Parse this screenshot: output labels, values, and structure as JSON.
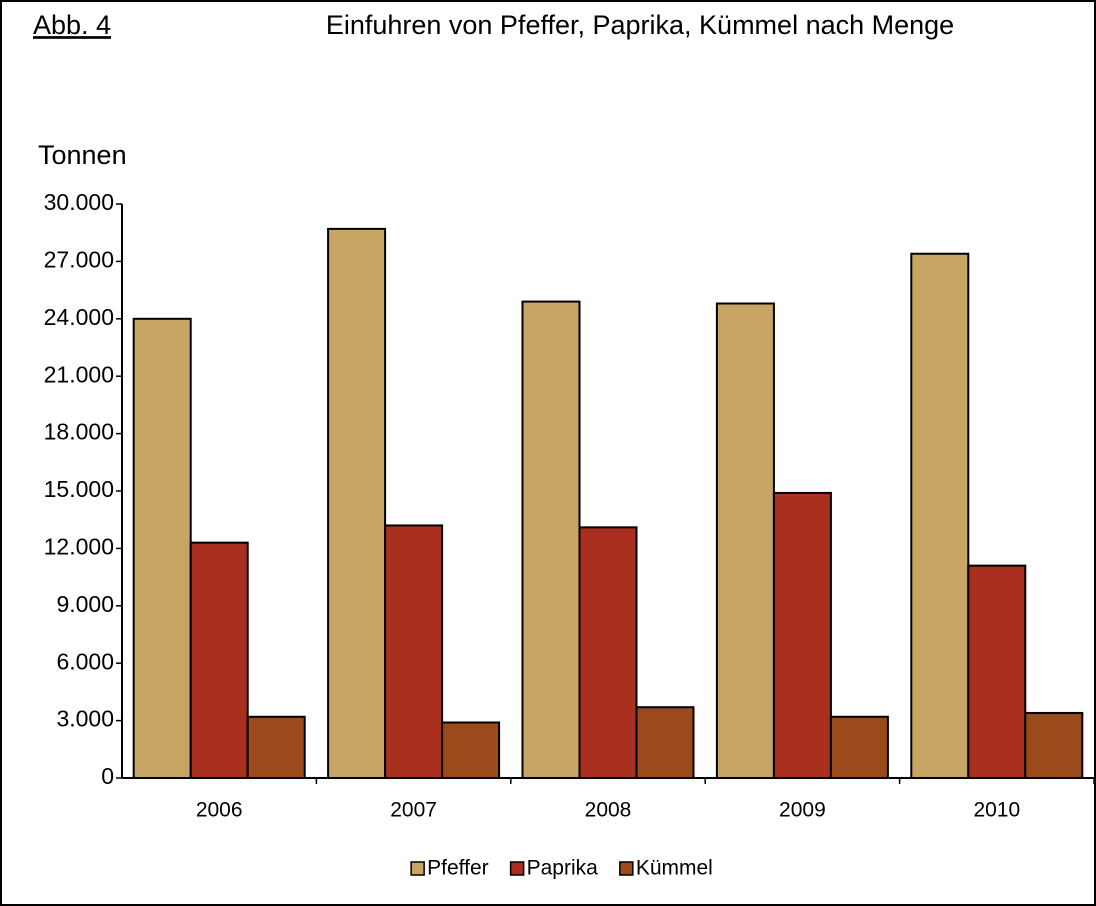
{
  "figure_label": "Abb. 4",
  "chart_data": {
    "type": "bar",
    "title": "Einfuhren von Pfeffer, Paprika, Kümmel nach Menge",
    "y_label": "Tonnen",
    "categories": [
      "2006",
      "2007",
      "2008",
      "2009",
      "2010"
    ],
    "series": [
      {
        "name": "Pfeffer",
        "color": "#c9a565",
        "values": [
          24000,
          28700,
          24900,
          24800,
          27400
        ]
      },
      {
        "name": "Paprika",
        "color": "#a92f1f",
        "values": [
          12300,
          13200,
          13100,
          14900,
          11100
        ]
      },
      {
        "name": "Kümmel",
        "color": "#9b4a1c",
        "values": [
          3200,
          2900,
          3700,
          3200,
          3400
        ]
      }
    ],
    "ylim": [
      0,
      30000
    ],
    "yticks": [
      0,
      {
        "value": 3000,
        "label": "3.000"
      },
      {
        "value": 6000,
        "label": "6.000"
      },
      {
        "value": 9000,
        "label": "9.000"
      },
      {
        "value": 12000,
        "label": "12.000"
      },
      {
        "value": 15000,
        "label": "15.000"
      },
      {
        "value": 18000,
        "label": "18.000"
      },
      {
        "value": 21000,
        "label": "21.000"
      },
      {
        "value": 24000,
        "label": "24.000"
      },
      {
        "value": 27000,
        "label": "27.000"
      },
      {
        "value": 30000,
        "label": "30.000"
      }
    ],
    "grid": false,
    "legend": "bottom"
  }
}
